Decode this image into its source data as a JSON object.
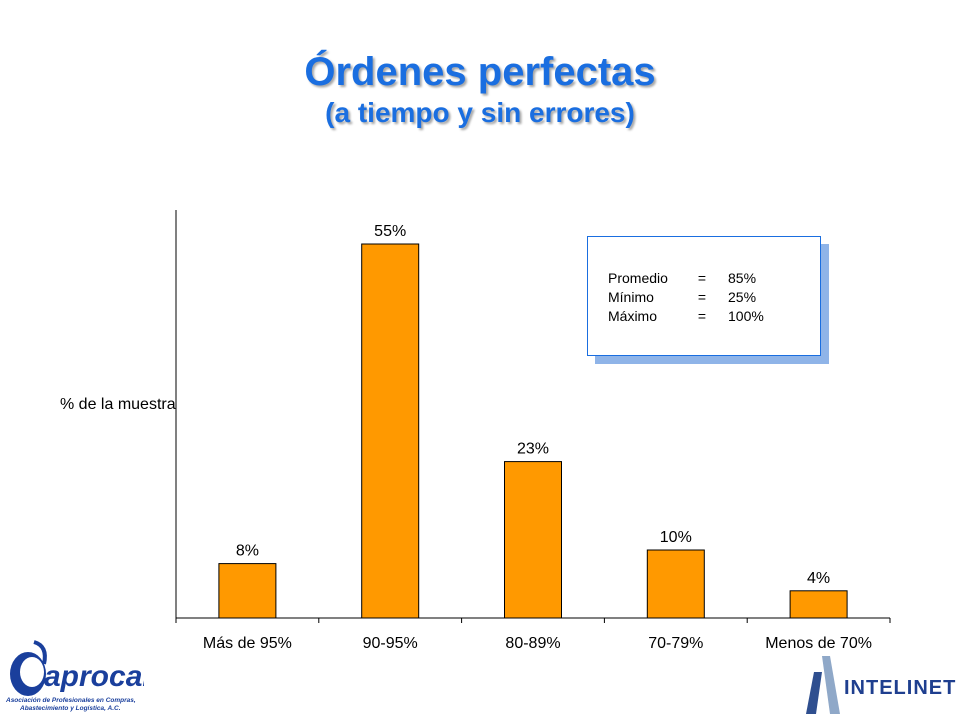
{
  "header": {
    "title": "Órdenes perfectas",
    "subtitle": "(a tiempo y sin errores)"
  },
  "stats_box": {
    "rows": [
      {
        "label": "Promedio",
        "eq": "=",
        "value": "85%"
      },
      {
        "label": "Mínimo",
        "eq": "=",
        "value": "25%"
      },
      {
        "label": "Máximo",
        "eq": "=",
        "value": "100%"
      }
    ]
  },
  "logos": {
    "left_name": "aprocal",
    "left_caption_1": "Asociación de Profesionales en Compras,",
    "left_caption_2": "Abastecimiento y Logística, A.C.",
    "right_name": "INTELINET"
  },
  "colors": {
    "bar": "#ff9900",
    "title": "#1a6ee0"
  },
  "chart_data": {
    "type": "bar",
    "title": "Órdenes perfectas",
    "subtitle": "(a tiempo y sin errores)",
    "ylabel": "% de la muestra",
    "xlabel": "",
    "categories": [
      "Más de 95%",
      "90-95%",
      "80-89%",
      "70-79%",
      "Menos de 70%"
    ],
    "values": [
      8,
      55,
      23,
      10,
      4
    ],
    "value_labels": [
      "8%",
      "55%",
      "23%",
      "10%",
      "4%"
    ],
    "ylim": [
      0,
      60
    ],
    "grid": false,
    "legend": "none"
  }
}
